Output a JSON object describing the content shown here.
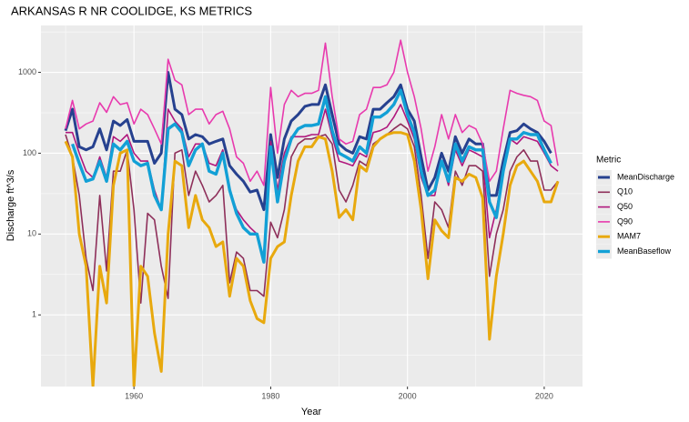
{
  "chart_data": {
    "type": "line",
    "title": "ARKANSAS R NR COOLIDGE, KS  METRICS",
    "xlabel": "Year",
    "ylabel": "Discharge ft^3/s",
    "legend_title": "Metric",
    "log_y": true,
    "grid": true,
    "legend": "right",
    "x": [
      1950,
      1951,
      1952,
      1953,
      1954,
      1955,
      1956,
      1957,
      1958,
      1959,
      1960,
      1961,
      1962,
      1963,
      1964,
      1965,
      1966,
      1967,
      1968,
      1969,
      1970,
      1971,
      1972,
      1973,
      1974,
      1975,
      1976,
      1977,
      1978,
      1979,
      1980,
      1981,
      1982,
      1983,
      1984,
      1985,
      1986,
      1987,
      1988,
      1989,
      1990,
      1991,
      1992,
      1993,
      1994,
      1995,
      1996,
      1997,
      1998,
      1999,
      2000,
      2001,
      2002,
      2003,
      2004,
      2005,
      2006,
      2007,
      2008,
      2009,
      2010,
      2011,
      2012,
      2013,
      2014,
      2015,
      2016,
      2017,
      2018,
      2019,
      2020,
      2021,
      2022
    ],
    "xlim": [
      1946.4,
      2025.6
    ],
    "xticks": [
      1960,
      1980,
      2000,
      2020
    ],
    "ylim": [
      0.13,
      3800
    ],
    "yticks": [
      1,
      10,
      100,
      1000
    ],
    "series": [
      {
        "name": "MeanDischarge",
        "color": "#26418f",
        "width": 3,
        "values": [
          190,
          350,
          120,
          110,
          120,
          200,
          110,
          250,
          220,
          260,
          140,
          140,
          140,
          75,
          100,
          1000,
          350,
          300,
          150,
          170,
          160,
          130,
          140,
          150,
          70,
          55,
          45,
          33,
          35,
          20,
          170,
          50,
          150,
          250,
          300,
          380,
          400,
          400,
          700,
          300,
          130,
          110,
          100,
          160,
          150,
          350,
          350,
          420,
          500,
          700,
          350,
          250,
          90,
          35,
          50,
          100,
          60,
          160,
          100,
          150,
          130,
          130,
          30,
          30,
          80,
          180,
          190,
          230,
          200,
          180,
          140,
          100,
          null
        ]
      },
      {
        "name": "Q10",
        "color": "#8e2f5a",
        "width": 1.6,
        "values": [
          170,
          90,
          30,
          5,
          2,
          30,
          3.5,
          60,
          60,
          110,
          20,
          1.4,
          18,
          15,
          4,
          1.6,
          100,
          110,
          30,
          60,
          40,
          25,
          30,
          40,
          2.5,
          6,
          5,
          2,
          2,
          1.7,
          14,
          9,
          20,
          90,
          130,
          150,
          150,
          160,
          170,
          130,
          35,
          25,
          40,
          80,
          70,
          130,
          150,
          170,
          200,
          230,
          200,
          120,
          30,
          5,
          25,
          20,
          12,
          60,
          40,
          70,
          70,
          60,
          3,
          10,
          20,
          60,
          90,
          110,
          80,
          80,
          35,
          35,
          45
        ]
      },
      {
        "name": "Q50",
        "color": "#b0177d",
        "width": 1.6,
        "values": [
          180,
          180,
          100,
          60,
          50,
          90,
          50,
          160,
          140,
          170,
          100,
          80,
          80,
          35,
          20,
          350,
          250,
          200,
          90,
          130,
          130,
          75,
          70,
          110,
          35,
          20,
          15,
          12,
          10,
          5,
          140,
          35,
          100,
          160,
          160,
          160,
          170,
          170,
          350,
          160,
          80,
          75,
          70,
          100,
          90,
          180,
          190,
          210,
          280,
          400,
          250,
          150,
          50,
          30,
          30,
          80,
          40,
          110,
          70,
          110,
          100,
          90,
          9,
          20,
          60,
          150,
          130,
          160,
          150,
          140,
          100,
          70,
          60
        ]
      },
      {
        "name": "Q90",
        "color": "#e83aae",
        "width": 1.6,
        "values": [
          200,
          450,
          200,
          230,
          250,
          420,
          320,
          500,
          400,
          420,
          230,
          350,
          300,
          200,
          130,
          1450,
          800,
          700,
          300,
          350,
          350,
          230,
          300,
          330,
          200,
          90,
          75,
          45,
          60,
          40,
          650,
          100,
          400,
          600,
          500,
          550,
          550,
          600,
          2300,
          500,
          150,
          130,
          140,
          300,
          350,
          650,
          650,
          700,
          1000,
          2500,
          1000,
          500,
          200,
          60,
          120,
          300,
          150,
          300,
          180,
          220,
          200,
          130,
          45,
          60,
          200,
          600,
          550,
          520,
          500,
          450,
          250,
          220,
          70
        ]
      },
      {
        "name": "MAM7",
        "color": "#e8a90e",
        "width": 3,
        "values": [
          140,
          90,
          10,
          4,
          0.13,
          4,
          1.4,
          40,
          100,
          110,
          0.13,
          4,
          3,
          0.6,
          0.2,
          10,
          80,
          70,
          12,
          30,
          15,
          12,
          7,
          8,
          1.7,
          5,
          4,
          1.5,
          0.9,
          0.8,
          5,
          7,
          8,
          30,
          80,
          120,
          120,
          160,
          150,
          60,
          16,
          20,
          15,
          70,
          60,
          120,
          150,
          170,
          180,
          180,
          170,
          80,
          20,
          2.8,
          15,
          11,
          9,
          50,
          45,
          55,
          50,
          28,
          0.5,
          3,
          10,
          40,
          70,
          80,
          60,
          45,
          25,
          25,
          45
        ]
      },
      {
        "name": "MeanBaseflow",
        "color": "#12a0d6",
        "width": 3.4,
        "values": [
          null,
          130,
          75,
          45,
          48,
          80,
          45,
          130,
          110,
          140,
          80,
          70,
          75,
          30,
          20,
          200,
          230,
          180,
          70,
          110,
          130,
          60,
          55,
          100,
          35,
          18,
          12,
          10,
          10,
          4.5,
          120,
          25,
          80,
          150,
          200,
          220,
          220,
          230,
          500,
          190,
          100,
          90,
          80,
          120,
          100,
          280,
          280,
          320,
          400,
          600,
          300,
          180,
          60,
          30,
          35,
          80,
          45,
          130,
          80,
          120,
          110,
          110,
          25,
          16,
          60,
          150,
          150,
          180,
          170,
          170,
          110,
          75,
          null
        ]
      }
    ]
  }
}
